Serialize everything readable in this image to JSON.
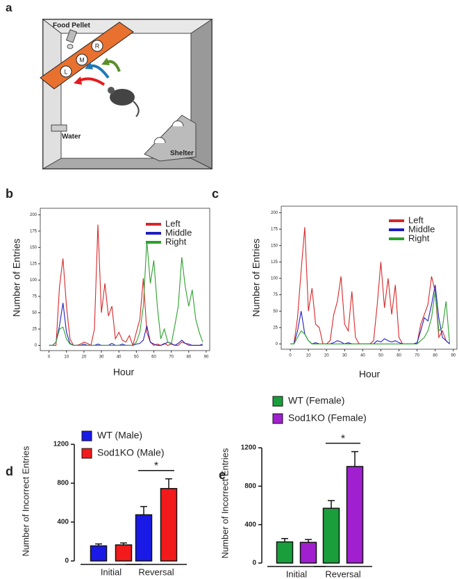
{
  "diagram": {
    "panel_label": "a",
    "food": "Food Pellet",
    "left": "L",
    "middle": "M",
    "right": "R",
    "water": "Water",
    "shelter": "Shelter"
  },
  "chart_data": [
    {
      "type": "line",
      "panel_label": "b",
      "x_label": "Hour",
      "y_label": "Number of Entries",
      "x": [
        0,
        2,
        4,
        6,
        8,
        10,
        12,
        14,
        16,
        18,
        20,
        22,
        24,
        26,
        28,
        30,
        32,
        34,
        36,
        38,
        40,
        42,
        44,
        46,
        48,
        50,
        52,
        54,
        56,
        58,
        60,
        62,
        64,
        66,
        68,
        70,
        72,
        74,
        76,
        78,
        80,
        82,
        84,
        86,
        88
      ],
      "series": [
        {
          "name": "Left",
          "color": "#d62728",
          "values": [
            0,
            0,
            0,
            90,
            133,
            60,
            10,
            0,
            0,
            2,
            5,
            3,
            0,
            25,
            185,
            50,
            95,
            45,
            60,
            10,
            20,
            8,
            5,
            15,
            0,
            20,
            40,
            103,
            20,
            5,
            0,
            2,
            0,
            3,
            0,
            2,
            0,
            0,
            5,
            3,
            0,
            0,
            0,
            0,
            0
          ]
        },
        {
          "name": "Middle",
          "color": "#1f1fbf",
          "values": [
            0,
            0,
            5,
            30,
            65,
            20,
            3,
            0,
            0,
            0,
            2,
            0,
            0,
            0,
            2,
            0,
            0,
            0,
            3,
            0,
            0,
            2,
            0,
            0,
            0,
            2,
            3,
            8,
            30,
            5,
            2,
            0,
            0,
            2,
            5,
            3,
            0,
            3,
            8,
            3,
            2,
            0,
            0,
            0,
            2
          ]
        },
        {
          "name": "Right",
          "color": "#2ca02c",
          "values": [
            0,
            0,
            5,
            25,
            28,
            10,
            2,
            0,
            0,
            0,
            0,
            0,
            0,
            0,
            0,
            0,
            0,
            0,
            0,
            0,
            0,
            0,
            0,
            0,
            0,
            5,
            20,
            60,
            160,
            95,
            130,
            60,
            10,
            25,
            5,
            2,
            30,
            60,
            135,
            90,
            60,
            85,
            40,
            20,
            5
          ]
        }
      ],
      "xlim": [
        -5,
        92
      ],
      "ylim": [
        -8,
        210
      ],
      "xticks": [
        0,
        10,
        20,
        30,
        40,
        50,
        60,
        70,
        80,
        90
      ],
      "yticks": [
        0,
        25,
        50,
        75,
        100,
        125,
        150,
        175,
        200
      ]
    },
    {
      "type": "line",
      "panel_label": "c",
      "x_label": "Hour",
      "y_label": "Number of Entries",
      "x": [
        0,
        2,
        4,
        6,
        8,
        10,
        12,
        14,
        16,
        18,
        20,
        22,
        24,
        26,
        28,
        30,
        32,
        34,
        36,
        38,
        40,
        42,
        44,
        46,
        48,
        50,
        52,
        54,
        56,
        58,
        60,
        62,
        64,
        66,
        68,
        70,
        72,
        74,
        76,
        78,
        80,
        82,
        84,
        86,
        88
      ],
      "series": [
        {
          "name": "Left",
          "color": "#d62728",
          "values": [
            0,
            0,
            40,
            112,
            178,
            50,
            85,
            30,
            25,
            0,
            0,
            5,
            45,
            65,
            103,
            30,
            20,
            80,
            10,
            0,
            0,
            0,
            0,
            5,
            60,
            125,
            55,
            100,
            45,
            90,
            10,
            0,
            0,
            0,
            0,
            0,
            30,
            45,
            60,
            103,
            80,
            10,
            20,
            5,
            0
          ]
        },
        {
          "name": "Middle",
          "color": "#1f1fbf",
          "values": [
            0,
            0,
            20,
            50,
            15,
            5,
            0,
            2,
            0,
            0,
            0,
            0,
            2,
            5,
            3,
            0,
            2,
            0,
            0,
            0,
            0,
            0,
            0,
            0,
            5,
            3,
            8,
            5,
            3,
            5,
            2,
            0,
            0,
            0,
            0,
            2,
            20,
            40,
            35,
            60,
            90,
            40,
            10,
            5,
            0
          ]
        },
        {
          "name": "Right",
          "color": "#2ca02c",
          "values": [
            0,
            0,
            10,
            20,
            15,
            5,
            0,
            0,
            0,
            0,
            0,
            0,
            0,
            0,
            0,
            0,
            0,
            0,
            0,
            0,
            0,
            0,
            0,
            0,
            0,
            0,
            0,
            0,
            0,
            0,
            0,
            0,
            0,
            0,
            0,
            0,
            5,
            10,
            20,
            40,
            80,
            20,
            25,
            65,
            0
          ]
        }
      ],
      "xlim": [
        -5,
        92
      ],
      "ylim": [
        -8,
        210
      ],
      "xticks": [
        0,
        10,
        20,
        30,
        40,
        50,
        60,
        70,
        80,
        90
      ],
      "yticks": [
        0,
        25,
        50,
        75,
        100,
        125,
        150,
        175,
        200
      ]
    },
    {
      "type": "bar",
      "panel_label": "d",
      "y_label": "Number of Incorrect Entries",
      "annotation": "*",
      "categories": [
        "Initial",
        "Reversal"
      ],
      "series": [
        {
          "name": "WT (Male)",
          "color": "#1a1ae6",
          "values": [
            155,
            475
          ],
          "errors": [
            20,
            85
          ]
        },
        {
          "name": "Sod1KO (Male)",
          "color": "#f21a1a",
          "values": [
            165,
            745
          ],
          "errors": [
            20,
            100
          ]
        }
      ],
      "ylim": [
        0,
        1200
      ],
      "yticks": [
        0,
        400,
        800,
        1200
      ]
    },
    {
      "type": "bar",
      "panel_label": "e",
      "y_label": "Number of Incorrect Entries",
      "annotation": "*",
      "categories": [
        "Initial",
        "Reversal"
      ],
      "series": [
        {
          "name": "WT (Female)",
          "color": "#1a9e3c",
          "values": [
            220,
            570
          ],
          "errors": [
            35,
            80
          ]
        },
        {
          "name": "Sod1KO (Female)",
          "color": "#a020d0",
          "values": [
            215,
            1005
          ],
          "errors": [
            30,
            155
          ]
        }
      ],
      "ylim": [
        0,
        1200
      ],
      "yticks": [
        0,
        400,
        800,
        1200
      ]
    }
  ]
}
